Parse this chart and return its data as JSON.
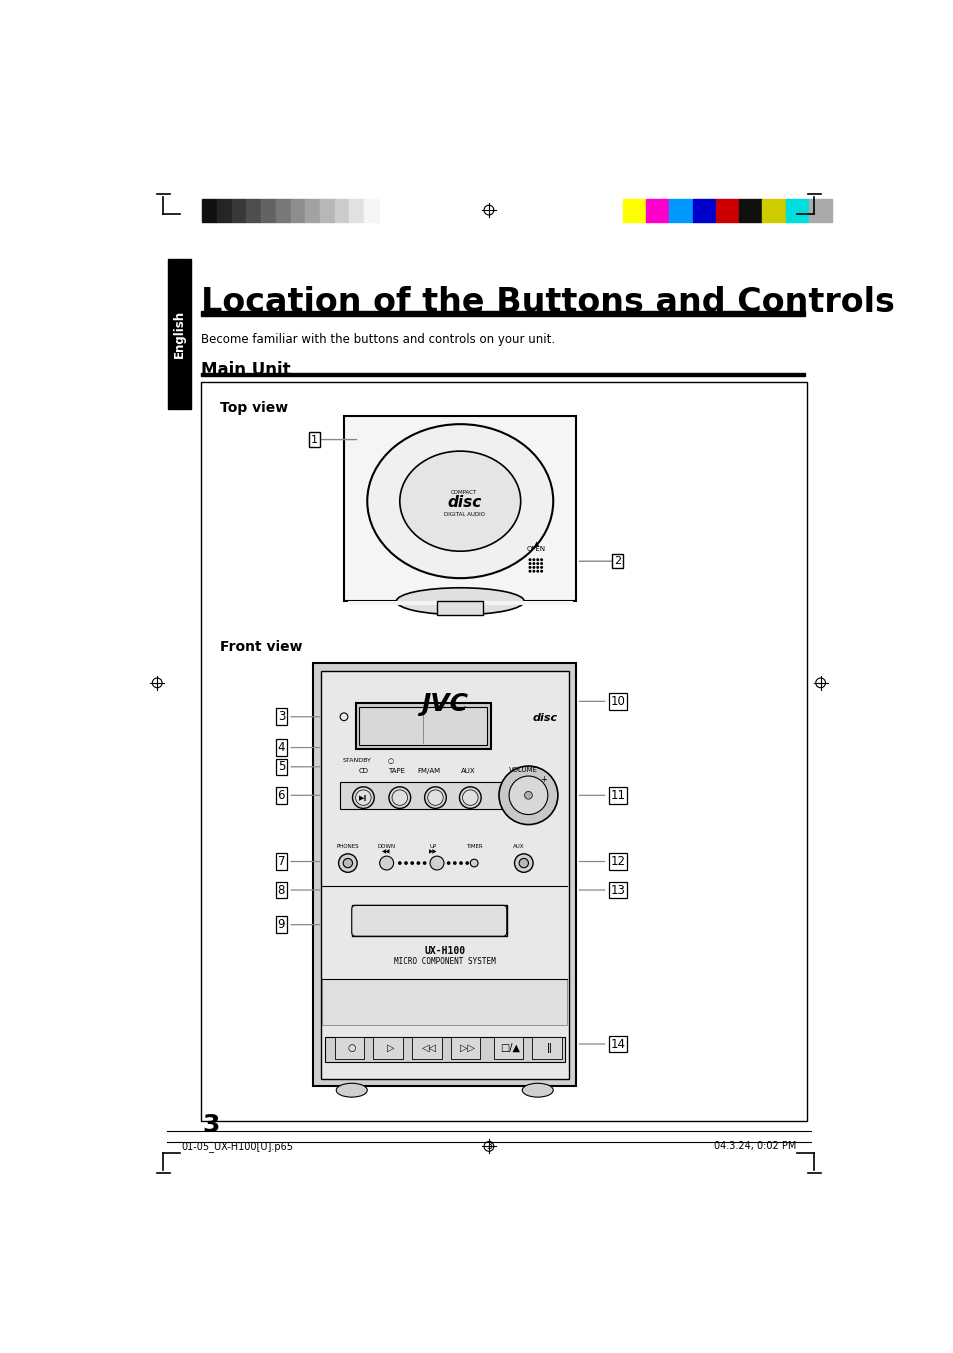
{
  "title": "Location of the Buttons and Controls",
  "subtitle": "Become familiar with the buttons and controls on your unit.",
  "section": "Main Unit",
  "tab_text": "English",
  "page_number": "3",
  "footer_left": "01-05_UX-H100[U].p65",
  "footer_center": "3",
  "footer_right": "04.3.24, 0:02 PM",
  "top_view_label": "Top view",
  "front_view_label": "Front view",
  "bg_color": "#ffffff",
  "tab_bg": "#000000",
  "tab_text_color": "#ffffff",
  "title_color": "#000000",
  "bar_color": "#000000",
  "grayscale_colors": [
    "#111111",
    "#252525",
    "#393939",
    "#4e4e4e",
    "#636363",
    "#787878",
    "#8d8d8d",
    "#a2a2a2",
    "#b7b7b7",
    "#cccccc",
    "#e1e1e1",
    "#f6f6f6"
  ],
  "color_swatches": [
    "#ffff00",
    "#ff00cc",
    "#0099ff",
    "#0000cc",
    "#cc0000",
    "#111111",
    "#cccc00",
    "#00dddd",
    "#aaaaaa"
  ],
  "callout_color": "#888888"
}
